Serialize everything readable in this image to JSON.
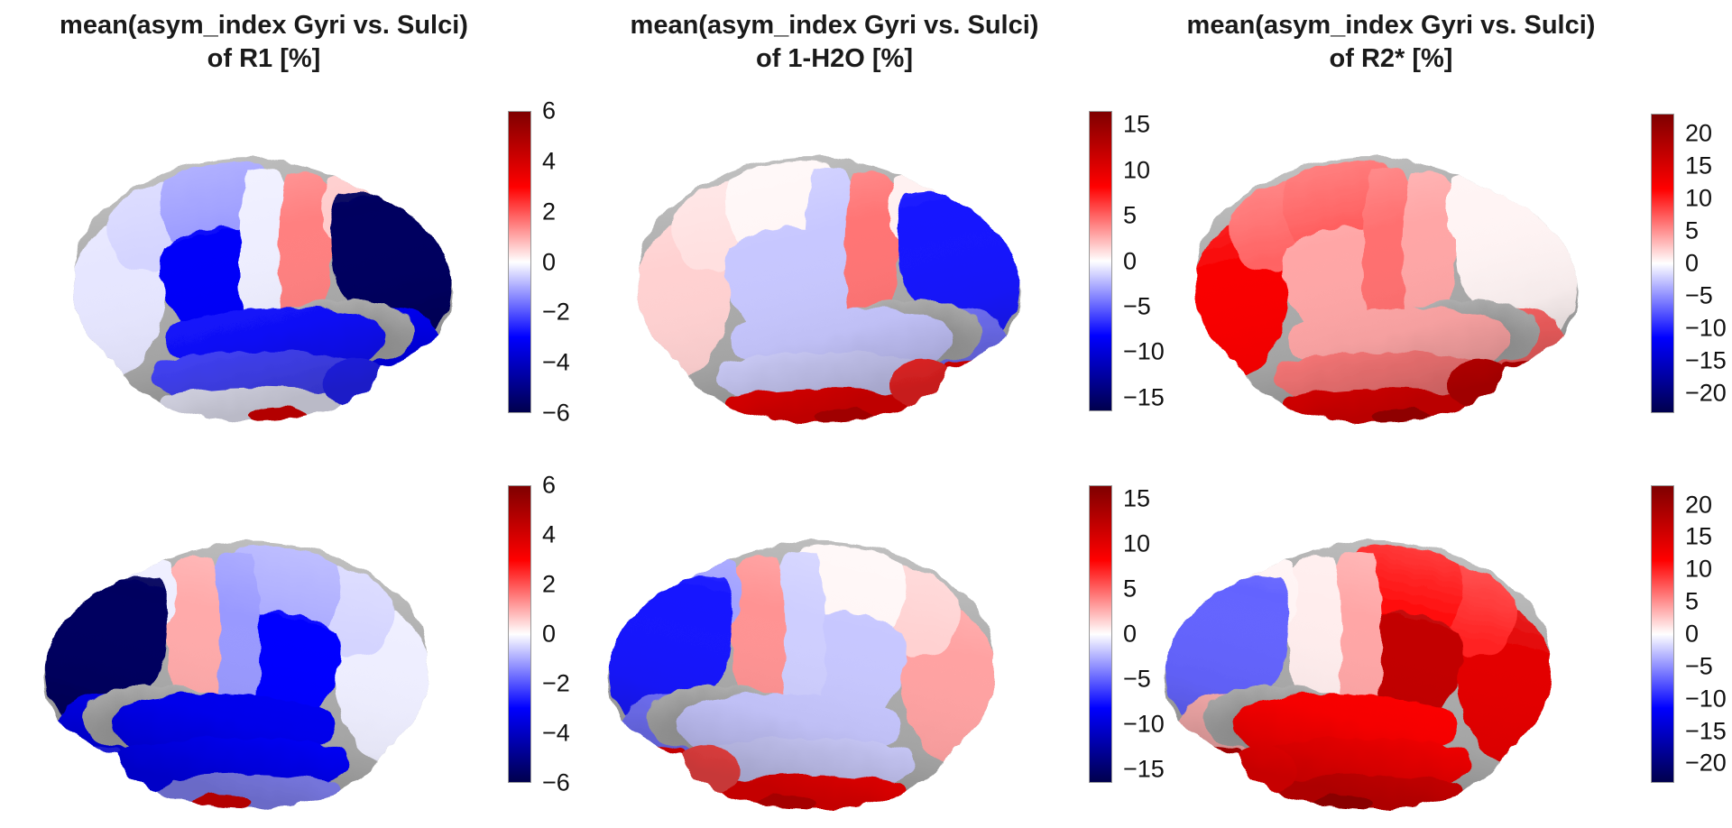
{
  "background": "#ffffff",
  "text_color": "#1a1a1a",
  "colormap_stops": [
    [
      "0",
      "#00004d"
    ],
    [
      "0.25",
      "#0000ff"
    ],
    [
      "0.5",
      "#ffffff"
    ],
    [
      "0.75",
      "#ff0000"
    ],
    [
      "1",
      "#7f0000"
    ]
  ],
  "figure_titles": [
    {
      "line1": "mean(asym_index Gyri vs. Sulci)",
      "line2": "of R1 [%]"
    },
    {
      "line1": "mean(asym_index Gyri vs. Sulci)",
      "line2": "of 1-H2O [%]"
    },
    {
      "line1": "mean(asym_index Gyri vs. Sulci)",
      "line2": "of R2* [%]"
    }
  ],
  "chart_data": [
    {
      "type": "heatmap",
      "subtype": "brain_surface_parcellation_map",
      "title": "mean(asym_index Gyri vs. Sulci) of R1 [%]",
      "metric": "R1",
      "units": "%",
      "colormap": "seismic blue-white-red, gray = unlabeled medial/insular wall",
      "colorbar": {
        "ticks": [
          6,
          4,
          2,
          0,
          -2,
          -4,
          -6
        ],
        "tick_max": 6,
        "tick_min": -6,
        "bar_max": 6,
        "bar_min": -6
      },
      "views": [
        {
          "view": "lateral, anterior to the right",
          "regions": {
            "occipital": -0.3,
            "cuneus": -0.5,
            "parietal_sup": -1.2,
            "parietal_inf": -3.1,
            "postcentral": -0.2,
            "precentral": 1.5,
            "frontal_sup": 0.6,
            "prefrontal": -5.7,
            "frontal_inf": -3.0,
            "orbital": -3.0,
            "temporal_sup": -2.8,
            "temporal_mid": -2.2,
            "temporal_inf": -0.2,
            "temporal_pole": -2.6,
            "inferotemporal_spot": 3.6
          }
        },
        {
          "view": "lateral, anterior to the left",
          "regions": {
            "occipital": -0.2,
            "cuneus": -0.5,
            "parietal_sup": -1.0,
            "parietal_inf": -3.0,
            "postcentral": -1.2,
            "precentral": 1.0,
            "frontal_sup": -0.2,
            "prefrontal": -5.7,
            "frontal_inf": -3.2,
            "orbital": -2.6,
            "temporal_sup": -3.2,
            "temporal_mid": -3.0,
            "temporal_inf": -1.4,
            "temporal_pole": -3.0,
            "inferotemporal_spot": 3.6
          }
        }
      ]
    },
    {
      "type": "heatmap",
      "subtype": "brain_surface_parcellation_map",
      "title": "mean(asym_index Gyri vs. Sulci) of 1-H2O [%]",
      "metric": "1-H2O",
      "units": "%",
      "colormap": "seismic blue-white-red, gray = unlabeled medial/insular wall",
      "colorbar": {
        "ticks": [
          15,
          10,
          5,
          0,
          -5,
          -10,
          -15
        ],
        "tick_max": 15,
        "tick_min": -15,
        "bar_max": 16.5,
        "bar_min": -16.5
      },
      "views": [
        {
          "view": "lateral, anterior to the right",
          "regions": {
            "occipital": 1.5,
            "cuneus": 1.0,
            "parietal_sup": 0.3,
            "parietal_inf": -1.8,
            "postcentral": -1.8,
            "precentral": 4.5,
            "frontal_sup": 0.5,
            "prefrontal": -7.5,
            "frontal_inf": -4.5,
            "orbital": 9.0,
            "temporal_sup": -1.8,
            "temporal_mid": -1.5,
            "temporal_inf": 9.0,
            "temporal_pole": 7.0,
            "inferotemporal_spot": 11.5
          }
        },
        {
          "view": "lateral, anterior to the left",
          "regions": {
            "occipital": 3.0,
            "cuneus": 1.5,
            "parietal_sup": 0.3,
            "parietal_inf": -1.8,
            "postcentral": -1.6,
            "precentral": 3.5,
            "frontal_sup": -3.0,
            "prefrontal": -7.5,
            "frontal_inf": -4.5,
            "orbital": 9.0,
            "temporal_sup": -1.8,
            "temporal_mid": -1.6,
            "temporal_inf": 8.5,
            "temporal_pole": 6.0,
            "inferotemporal_spot": 11.0
          }
        }
      ]
    },
    {
      "type": "heatmap",
      "subtype": "brain_surface_parcellation_map",
      "title": "mean(asym_index Gyri vs. Sulci) of R2* [%]",
      "metric": "R2*",
      "units": "%",
      "colormap": "seismic blue-white-red, gray = unlabeled medial/insular wall",
      "colorbar": {
        "ticks": [
          20,
          15,
          10,
          5,
          0,
          -5,
          -10,
          -15,
          -20
        ],
        "tick_max": 20,
        "tick_min": -20,
        "bar_max": 23,
        "bar_min": -23
      },
      "views": [
        {
          "view": "lateral, anterior to the right",
          "regions": {
            "occipital": 12.0,
            "cuneus": 7.0,
            "parietal_sup": 7.5,
            "parietal_inf": 4.0,
            "postcentral": 6.5,
            "precentral": 4.0,
            "frontal_sup": 0.5,
            "prefrontal": 0.5,
            "frontal_inf": 7.0,
            "orbital": 16.0,
            "temporal_sup": 4.0,
            "temporal_mid": 6.0,
            "temporal_inf": 13.0,
            "temporal_pole": 16.0,
            "inferotemporal_spot": 18.0
          }
        },
        {
          "view": "lateral, anterior to the left",
          "regions": {
            "occipital": 14.0,
            "cuneus": 10.0,
            "parietal_sup": 11.5,
            "parietal_inf": 17.0,
            "postcentral": 4.0,
            "precentral": 0.8,
            "frontal_sup": 0.5,
            "prefrontal": -7.0,
            "frontal_inf": 3.5,
            "orbital": 17.0,
            "temporal_sup": 11.5,
            "temporal_mid": 12.0,
            "temporal_inf": 14.5,
            "temporal_pole": 11.5,
            "inferotemporal_spot": 18.5
          }
        }
      ]
    }
  ]
}
